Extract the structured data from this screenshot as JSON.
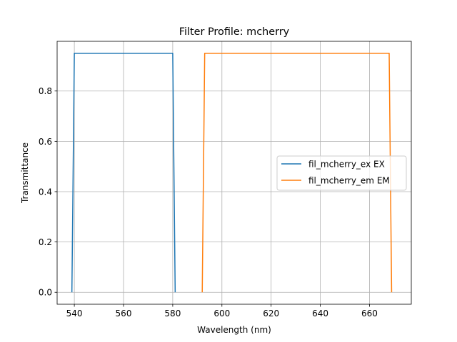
{
  "chart_data": {
    "type": "line",
    "title": "Filter Profile: mcherry",
    "xlabel": "Wavelength (nm)",
    "ylabel": "Transmittance",
    "xlim": [
      533,
      677
    ],
    "ylim": [
      -0.0475,
      0.9975
    ],
    "xticks": [
      540,
      560,
      580,
      600,
      620,
      640,
      660
    ],
    "yticks": [
      0.0,
      0.2,
      0.4,
      0.6,
      0.8
    ],
    "ytick_labels": [
      "0.0",
      "0.2",
      "0.4",
      "0.6",
      "0.8"
    ],
    "grid": true,
    "legend": "center-right",
    "series": [
      {
        "name": "fil_mcherry_ex EX",
        "color": "#1f77b4",
        "x": [
          539,
          540,
          580,
          581
        ],
        "y": [
          0.0,
          0.95,
          0.95,
          0.0
        ]
      },
      {
        "name": "fil_mcherry_em EM",
        "color": "#ff7f0e",
        "x": [
          592,
          593,
          668,
          669
        ],
        "y": [
          0.0,
          0.95,
          0.95,
          0.0
        ]
      }
    ]
  }
}
